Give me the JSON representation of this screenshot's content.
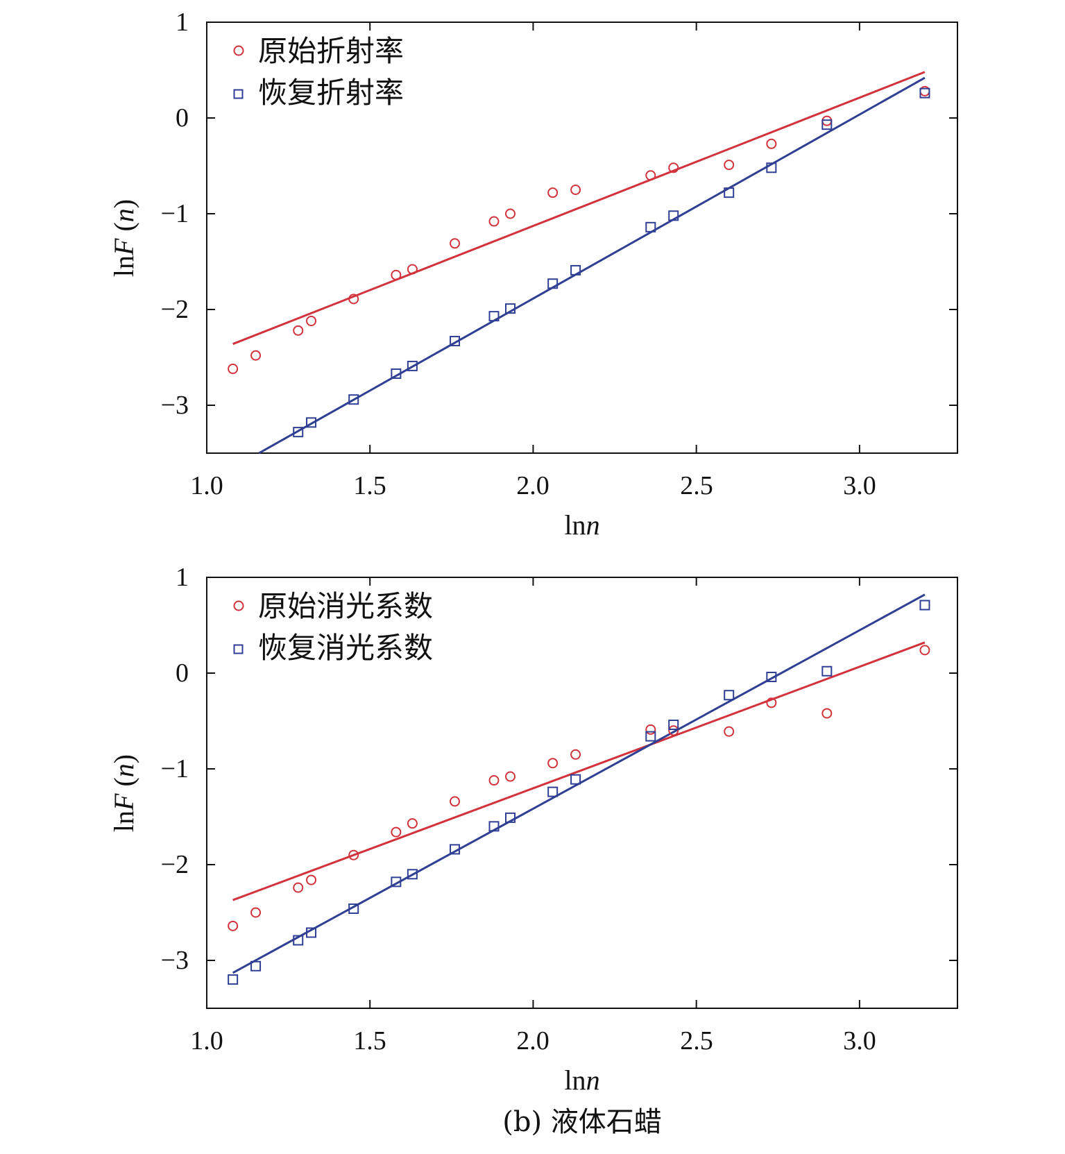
{
  "chart_data": [
    {
      "type": "scatter",
      "xlabel": "lnn",
      "ylabel": "lnF (n)",
      "xlim": [
        1.0,
        3.3
      ],
      "ylim": [
        -3.5,
        1.0
      ],
      "xticks": [
        "1.0",
        "1.5",
        "2.0",
        "2.5",
        "3.0"
      ],
      "yticks": [
        "1",
        "0",
        "−1",
        "−2",
        "−3"
      ],
      "legend_position": "top-left",
      "series": [
        {
          "name": "原始折射率",
          "marker": "circle",
          "color": "#d2323c",
          "x": [
            1.08,
            1.15,
            1.28,
            1.32,
            1.45,
            1.58,
            1.63,
            1.76,
            1.88,
            1.93,
            2.06,
            2.13,
            2.36,
            2.43,
            2.6,
            2.73,
            2.9,
            3.2
          ],
          "y": [
            -2.62,
            -2.48,
            -2.22,
            -2.12,
            -1.89,
            -1.64,
            -1.58,
            -1.31,
            -1.08,
            -1.0,
            -0.78,
            -0.75,
            -0.6,
            -0.52,
            -0.49,
            -0.27,
            -0.03,
            0.28
          ],
          "fit": {
            "x": [
              1.08,
              3.2
            ],
            "y": [
              -2.36,
              0.48
            ]
          }
        },
        {
          "name": "恢复折射率",
          "marker": "square",
          "color": "#2f3f94",
          "x": [
            1.28,
            1.32,
            1.45,
            1.58,
            1.63,
            1.76,
            1.88,
            1.93,
            2.06,
            2.13,
            2.36,
            2.43,
            2.6,
            2.73,
            2.9,
            3.2
          ],
          "y": [
            -3.28,
            -3.18,
            -2.94,
            -2.67,
            -2.59,
            -2.33,
            -2.07,
            -1.99,
            -1.73,
            -1.59,
            -1.14,
            -1.02,
            -0.78,
            -0.52,
            -0.07,
            0.26
          ],
          "fit": {
            "x": [
              1.16,
              3.2
            ],
            "y": [
              -3.5,
              0.42
            ]
          }
        }
      ]
    },
    {
      "type": "scatter",
      "xlabel": "lnn",
      "ylabel": "lnF (n)",
      "xlim": [
        1.0,
        3.3
      ],
      "ylim": [
        -3.5,
        1.0
      ],
      "xticks": [
        "1.0",
        "1.5",
        "2.0",
        "2.5",
        "3.0"
      ],
      "yticks": [
        "1",
        "0",
        "−1",
        "−2",
        "−3"
      ],
      "legend_position": "top-left",
      "caption": "(b) 液体石蜡",
      "series": [
        {
          "name": "原始消光系数",
          "marker": "circle",
          "color": "#d2323c",
          "x": [
            1.08,
            1.15,
            1.28,
            1.32,
            1.45,
            1.58,
            1.63,
            1.76,
            1.88,
            1.93,
            2.06,
            2.13,
            2.36,
            2.43,
            2.6,
            2.73,
            2.9,
            3.2
          ],
          "y": [
            -2.64,
            -2.5,
            -2.24,
            -2.16,
            -1.9,
            -1.66,
            -1.57,
            -1.34,
            -1.12,
            -1.08,
            -0.94,
            -0.85,
            -0.59,
            -0.6,
            -0.61,
            -0.31,
            -0.42,
            0.24
          ],
          "fit": {
            "x": [
              1.08,
              3.2
            ],
            "y": [
              -2.37,
              0.32
            ]
          }
        },
        {
          "name": "恢复消光系数",
          "marker": "square",
          "color": "#2f3f94",
          "x": [
            1.08,
            1.15,
            1.28,
            1.32,
            1.45,
            1.58,
            1.63,
            1.76,
            1.88,
            1.93,
            2.06,
            2.13,
            2.36,
            2.43,
            2.6,
            2.73,
            2.9,
            3.2
          ],
          "y": [
            -3.2,
            -3.06,
            -2.79,
            -2.71,
            -2.46,
            -2.18,
            -2.1,
            -1.84,
            -1.6,
            -1.51,
            -1.24,
            -1.11,
            -0.66,
            -0.54,
            -0.23,
            -0.04,
            0.02,
            0.71
          ],
          "fit": {
            "x": [
              1.08,
              3.2
            ],
            "y": [
              -3.13,
              0.82
            ]
          }
        }
      ]
    }
  ]
}
